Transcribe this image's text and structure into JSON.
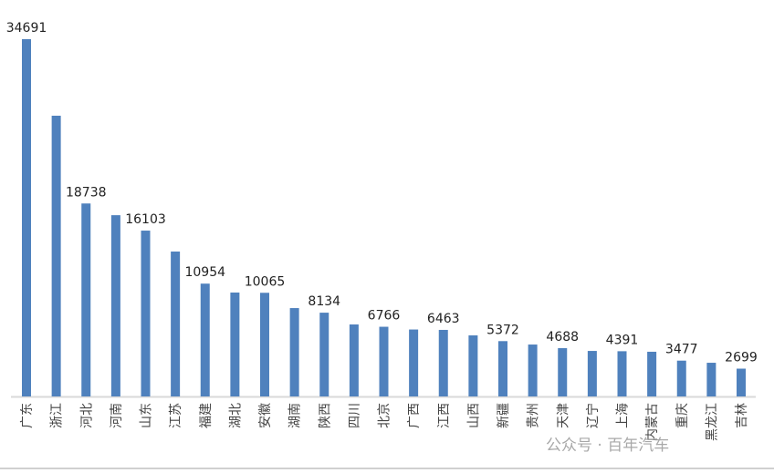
{
  "chart_data": {
    "type": "bar",
    "title": "",
    "xlabel": "",
    "ylabel": "",
    "ylim": [
      0,
      34691
    ],
    "grid": false,
    "bar_color": "#4F81BD",
    "categories": [
      "广东",
      "浙江",
      "河北",
      "河南",
      "山东",
      "江苏",
      "福建",
      "湖北",
      "安徽",
      "湖南",
      "陕西",
      "四川",
      "北京",
      "广西",
      "江西",
      "山西",
      "新疆",
      "贵州",
      "天津",
      "辽宁",
      "上海",
      "内蒙古",
      "重庆",
      "黑龙江",
      "吉林"
    ],
    "values": [
      34691,
      27260,
      18738,
      17600,
      16103,
      14070,
      10954,
      10090,
      10065,
      8580,
      8134,
      6990,
      6766,
      6500,
      6463,
      5930,
      5372,
      5040,
      4688,
      4420,
      4391,
      4340,
      3477,
      3270,
      2699
    ],
    "labeled": [
      true,
      false,
      true,
      false,
      true,
      false,
      true,
      false,
      true,
      false,
      true,
      false,
      true,
      false,
      true,
      false,
      true,
      false,
      true,
      false,
      true,
      false,
      true,
      false,
      true
    ]
  },
  "watermark": "公众号 · 百年汽车"
}
